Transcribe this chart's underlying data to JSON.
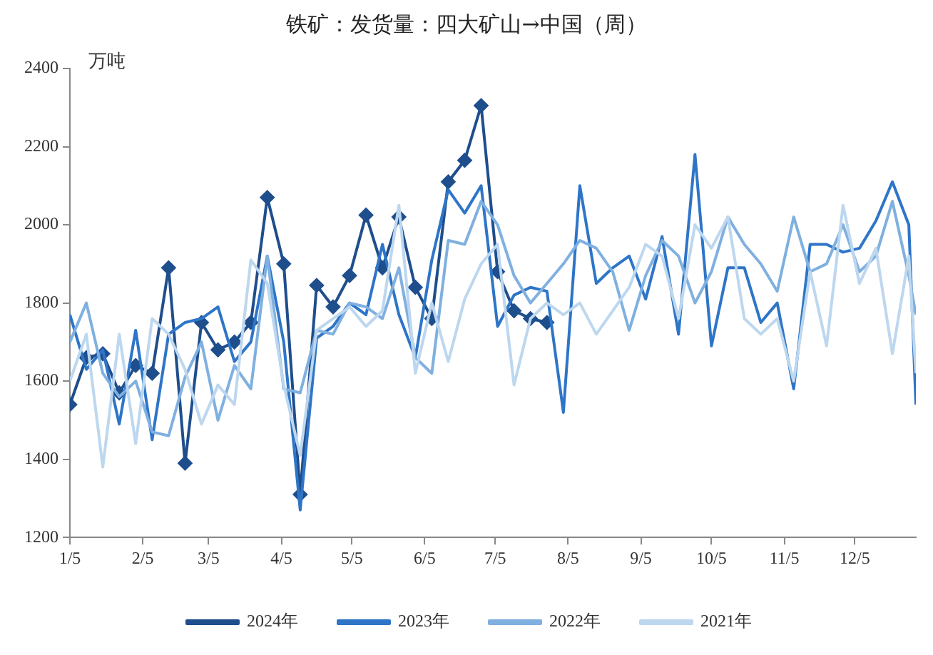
{
  "chart_data": {
    "type": "line",
    "title": "铁矿：发货量：四大矿山→中国（周）",
    "ylabel": "万吨",
    "x": [
      "--01-05",
      "--01-12",
      "--01-19",
      "--01-26",
      "--02-02",
      "--02-09",
      "--02-16",
      "--02-23",
      "--03-02",
      "--03-09",
      "--03-16",
      "--03-23",
      "--03-30",
      "--04-06",
      "--04-13",
      "--04-20",
      "--04-27",
      "--05-04",
      "--05-11",
      "--05-18",
      "--05-25",
      "--06-01",
      "--06-08",
      "--06-15",
      "--06-22",
      "--06-29",
      "--07-06",
      "--07-13",
      "--07-20",
      "--07-27",
      "--08-03",
      "--08-10",
      "--08-17",
      "--08-24",
      "--08-31",
      "--09-07",
      "--09-14",
      "--09-21",
      "--09-28",
      "--10-05",
      "--10-12",
      "--10-19",
      "--10-26",
      "--11-02",
      "--11-09",
      "--11-16",
      "--11-23",
      "--11-30",
      "--12-07",
      "--12-14",
      "--12-21",
      "--12-28",
      "--12-31"
    ],
    "series": [
      {
        "name": "2024年",
        "color": "#1f4e8c",
        "marker": "diamond",
        "x": [
          "--01-05",
          "--01-12",
          "--01-19",
          "--01-26",
          "--02-02",
          "--02-09",
          "--02-16",
          "--02-23",
          "--03-02",
          "--03-09",
          "--03-16",
          "--03-23",
          "--03-30",
          "--04-06",
          "--04-13",
          "--04-20",
          "--04-27",
          "--05-04",
          "--05-11",
          "--05-18",
          "--05-25",
          "--06-01",
          "--06-08",
          "--06-15",
          "--06-22",
          "--06-29",
          "--07-06",
          "--07-13",
          "--07-20",
          "--07-27"
        ],
        "values": [
          1540,
          1660,
          1670,
          1570,
          1640,
          1620,
          1890,
          1390,
          1750,
          1680,
          1700,
          1750,
          2070,
          1900,
          1310,
          1845,
          1790,
          1870,
          2025,
          1890,
          2020,
          1840,
          1760,
          2110,
          2165,
          2305,
          1880,
          1780,
          1760,
          1750
        ]
      },
      {
        "name": "2023年",
        "color": "#2e75c8",
        "marker": "none",
        "values": [
          1770,
          1630,
          1680,
          1490,
          1730,
          1450,
          1720,
          1750,
          1760,
          1790,
          1650,
          1700,
          1920,
          1700,
          1270,
          1710,
          1740,
          1800,
          1770,
          1950,
          1770,
          1660,
          1910,
          2090,
          2030,
          2100,
          1740,
          1820,
          1840,
          1830,
          1520,
          2100,
          1850,
          1890,
          1920,
          1810,
          1970,
          1720,
          2180,
          1690,
          1890,
          1890,
          1750,
          1800,
          1580,
          1950,
          1950,
          1930,
          1940,
          2010,
          2110,
          2000,
          1540
        ]
      },
      {
        "name": "2022年",
        "color": "#7fb0e0",
        "marker": "none",
        "values": [
          1700,
          1800,
          1620,
          1560,
          1600,
          1470,
          1460,
          1610,
          1700,
          1500,
          1640,
          1580,
          1920,
          1580,
          1570,
          1730,
          1720,
          1800,
          1790,
          1760,
          1890,
          1660,
          1620,
          1960,
          1950,
          2060,
          2000,
          1870,
          1800,
          1850,
          1900,
          1960,
          1940,
          1880,
          1730,
          1870,
          1960,
          1920,
          1800,
          1880,
          2020,
          1950,
          1900,
          1830,
          2020,
          1880,
          1900,
          2000,
          1880,
          1920,
          2060,
          1870,
          1770
        ]
      },
      {
        "name": "2021年",
        "color": "#bdd7ee",
        "marker": "none",
        "values": [
          1600,
          1720,
          1380,
          1720,
          1440,
          1760,
          1720,
          1630,
          1490,
          1590,
          1540,
          1910,
          1850,
          1590,
          1410,
          1730,
          1760,
          1790,
          1740,
          1780,
          2050,
          1620,
          1800,
          1650,
          1810,
          1900,
          1950,
          1590,
          1760,
          1800,
          1770,
          1800,
          1720,
          1780,
          1840,
          1950,
          1920,
          1760,
          2000,
          1940,
          2020,
          1760,
          1720,
          1760,
          1600,
          1880,
          1690,
          2050,
          1850,
          1940,
          1670,
          1920,
          1620
        ]
      }
    ],
    "xlim": [
      "--01-05",
      "--12-31"
    ],
    "xticks": [
      {
        "value": "--01-05",
        "label": "1/5"
      },
      {
        "value": "--02-05",
        "label": "2/5"
      },
      {
        "value": "--03-05",
        "label": "3/5"
      },
      {
        "value": "--04-05",
        "label": "4/5"
      },
      {
        "value": "--05-05",
        "label": "5/5"
      },
      {
        "value": "--06-05",
        "label": "6/5"
      },
      {
        "value": "--07-05",
        "label": "7/5"
      },
      {
        "value": "--08-05",
        "label": "8/5"
      },
      {
        "value": "--09-05",
        "label": "9/5"
      },
      {
        "value": "--10-05",
        "label": "10/5"
      },
      {
        "value": "--11-05",
        "label": "11/5"
      },
      {
        "value": "--12-05",
        "label": "12/5"
      }
    ],
    "ylim": [
      1200,
      2400
    ],
    "yticks": [
      1200,
      1400,
      1600,
      1800,
      2000,
      2200,
      2400
    ],
    "legend": "bottom"
  }
}
